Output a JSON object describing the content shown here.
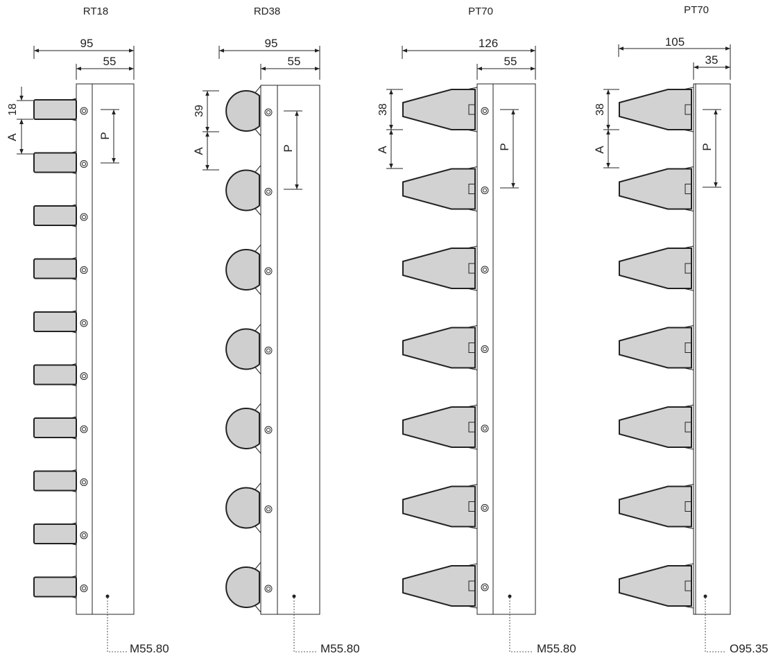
{
  "columns": [
    {
      "title": "RT18",
      "overall_width": "95",
      "bar_width": "55",
      "finger_dim": "18",
      "spacing_label": "A",
      "pitch_label": "P",
      "code": "M55.80",
      "finger_type": "rect",
      "finger_count": 10
    },
    {
      "title": "RD38",
      "overall_width": "95",
      "bar_width": "55",
      "finger_dim": "39",
      "spacing_label": "A",
      "pitch_label": "P",
      "code": "M55.80",
      "finger_type": "round",
      "finger_count": 7
    },
    {
      "title": "PT70",
      "overall_width": "126",
      "bar_width": "55",
      "finger_dim": "38",
      "spacing_label": "A",
      "pitch_label": "P",
      "code": "M55.80",
      "finger_type": "taper",
      "finger_count": 7
    },
    {
      "title": "PT70",
      "overall_width": "105",
      "bar_width": "35",
      "finger_dim": "38",
      "spacing_label": "A",
      "pitch_label": "P",
      "code": "O95.35",
      "finger_type": "taper",
      "finger_count": 7
    }
  ]
}
